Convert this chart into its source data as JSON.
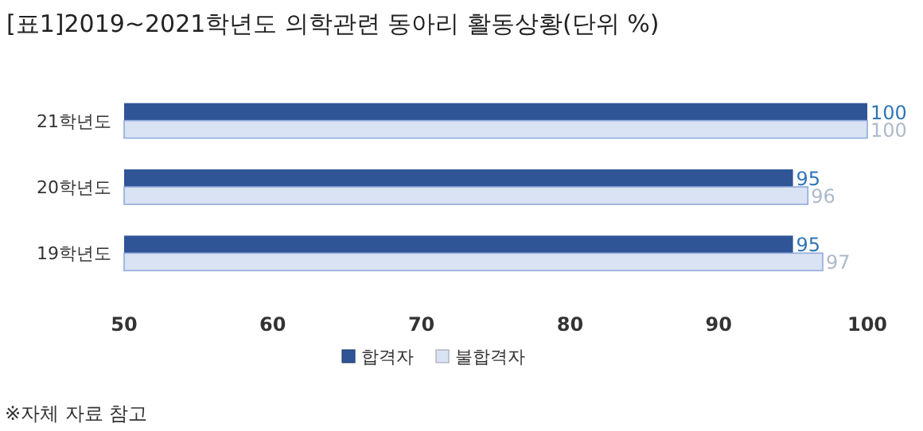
{
  "chart_data": {
    "type": "bar",
    "orientation": "horizontal",
    "title": "[표1]2019~2021학년도 의학관련 동아리 활동상황(단위 %)",
    "categories": [
      "21학년도",
      "20학년도",
      "19학년도"
    ],
    "series": [
      {
        "name": "합격자",
        "color": "#2f5597",
        "values": [
          100,
          95,
          95
        ]
      },
      {
        "name": "불합격자",
        "color": "#dae3f3",
        "values": [
          100,
          96,
          97
        ]
      }
    ],
    "xlim": [
      50,
      100
    ],
    "xticks": [
      50,
      60,
      70,
      80,
      90,
      100
    ],
    "data_labels": true,
    "legend": "bottom",
    "grid": false,
    "annotations": [
      "※자체 자료 참고"
    ]
  }
}
